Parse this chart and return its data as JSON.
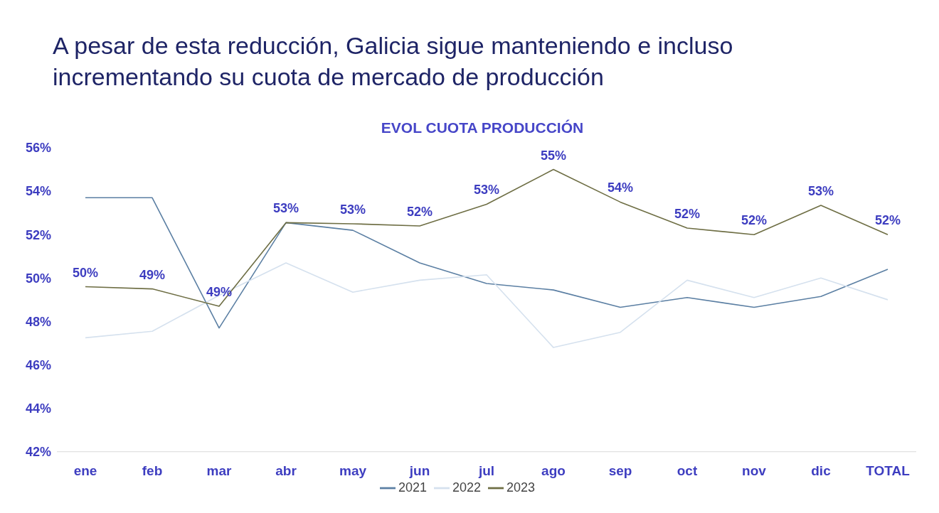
{
  "chart_data": {
    "type": "line",
    "title": "A pesar de esta reducción, Galicia sigue manteniendo e incluso incrementando su cuota de mercado de producción",
    "subtitle": "EVOL CUOTA PRODUCCIÓN",
    "categories": [
      "ene",
      "feb",
      "mar",
      "abr",
      "may",
      "jun",
      "jul",
      "ago",
      "sep",
      "oct",
      "nov",
      "dic",
      "TOTAL"
    ],
    "series": [
      {
        "name": "2021",
        "color": "#5b7fa3",
        "values": [
          53.7,
          53.7,
          47.7,
          52.55,
          52.2,
          50.7,
          49.75,
          49.45,
          48.65,
          49.1,
          48.65,
          49.15,
          50.4
        ]
      },
      {
        "name": "2022",
        "color": "#d5e1ee",
        "values": [
          47.25,
          47.55,
          49.2,
          50.7,
          49.35,
          49.9,
          50.15,
          46.8,
          47.5,
          49.9,
          49.1,
          50.0,
          49.0
        ]
      },
      {
        "name": "2023",
        "color": "#6e6e44",
        "values": [
          49.6,
          49.5,
          48.7,
          52.55,
          52.5,
          52.4,
          53.4,
          55.0,
          53.5,
          52.3,
          52.0,
          53.35,
          52.0
        ],
        "value_labels": [
          "50%",
          "49%",
          "49%",
          "53%",
          "53%",
          "52%",
          "53%",
          "55%",
          "54%",
          "52%",
          "52%",
          "53%",
          "52%"
        ]
      }
    ],
    "ylim": [
      42,
      56
    ],
    "yticks": [
      {
        "value": 42,
        "label": "42%"
      },
      {
        "value": 44,
        "label": "44%"
      },
      {
        "value": 46,
        "label": "46%"
      },
      {
        "value": 48,
        "label": "48%"
      },
      {
        "value": 50,
        "label": "50%"
      },
      {
        "value": 52,
        "label": "52%"
      },
      {
        "value": 54,
        "label": "54%"
      },
      {
        "value": 56,
        "label": "56%"
      }
    ],
    "legend": "bottom",
    "line_style": "solid",
    "marker": "none",
    "grid": false
  }
}
